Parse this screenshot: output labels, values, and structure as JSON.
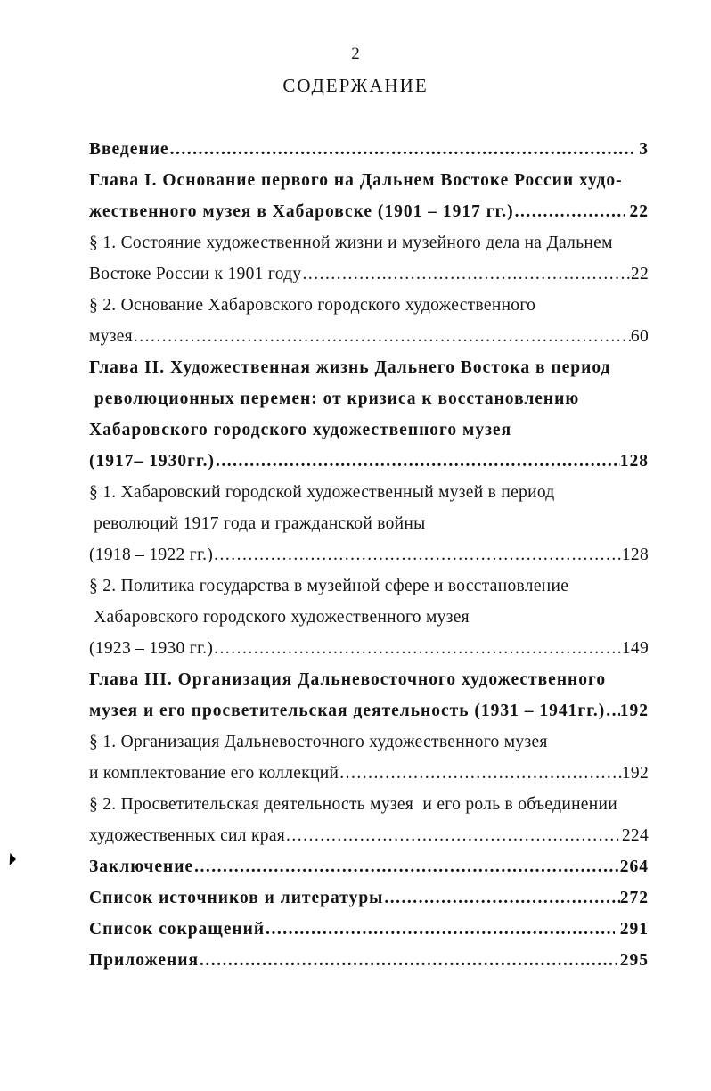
{
  "page": {
    "number": "2",
    "title": "СОДЕРЖАНИЕ"
  },
  "colors": {
    "text": "#141414",
    "background": "#ffffff"
  },
  "toc": {
    "entries": [
      {
        "text": "Введение",
        "bold": true,
        "page": " 3"
      },
      {
        "text": "Глава I. Основание первого на Дальнем Востоке России худо-",
        "bold": true,
        "page": null
      },
      {
        "text": "жественного музея в Хабаровске (1901 – 1917 гг.)",
        "bold": true,
        "page": " 22"
      },
      {
        "text": "§ 1. Состояние художественной жизни и музейного дела на Дальнем",
        "bold": false,
        "page": null
      },
      {
        "text": "Востоке России к 1901 году",
        "bold": false,
        "page": "22"
      },
      {
        "text": "§ 2. Основание Хабаровского городского художественного",
        "bold": false,
        "page": null
      },
      {
        "text": "музея",
        "bold": false,
        "page": "60"
      },
      {
        "text": "Глава II. Художественная жизнь Дальнего Востока в период",
        "bold": true,
        "page": null
      },
      {
        "text": " революционных перемен: от кризиса к восстановлению",
        "bold": true,
        "page": null
      },
      {
        "text": "Хабаровского городского художественного музея",
        "bold": true,
        "page": null
      },
      {
        "text": "(1917– 1930гг.)",
        "bold": true,
        "page": "128"
      },
      {
        "text": "§ 1. Хабаровский городской художественный музей в период",
        "bold": false,
        "page": null
      },
      {
        "text": " революций 1917 года и гражданской войны",
        "bold": false,
        "page": null
      },
      {
        "text": "(1918 – 1922 гг.)",
        "bold": false,
        "page": "128"
      },
      {
        "text": "§ 2. Политика государства в музейной сфере и восстановление",
        "bold": false,
        "page": null
      },
      {
        "text": " Хабаровского городского художественного музея",
        "bold": false,
        "page": null
      },
      {
        "text": "(1923 – 1930 гг.)",
        "bold": false,
        "page": "149"
      },
      {
        "text": "Глава III. Организация Дальневосточного художественного",
        "bold": true,
        "page": null
      },
      {
        "text": "музея и его просветительская деятельность (1931 – 1941гг.)",
        "bold": true,
        "page": "192"
      },
      {
        "text": "§ 1. Организация Дальневосточного художественного музея",
        "bold": false,
        "page": null
      },
      {
        "text": "и комплектование его коллекций",
        "bold": false,
        "page": "192"
      },
      {
        "text": "§ 2. Просветительская деятельность музея  и его роль в объединении",
        "bold": false,
        "page": null
      },
      {
        "text": "художественных сил края",
        "bold": false,
        "page": "224"
      },
      {
        "text": "Заключение",
        "bold": true,
        "page": "264"
      },
      {
        "text": "Список источников и литературы",
        "bold": true,
        "page": "272"
      },
      {
        "text": "Список сокращений",
        "bold": true,
        "page": " 291"
      },
      {
        "text": "Приложения",
        "bold": true,
        "page": "295"
      }
    ]
  }
}
